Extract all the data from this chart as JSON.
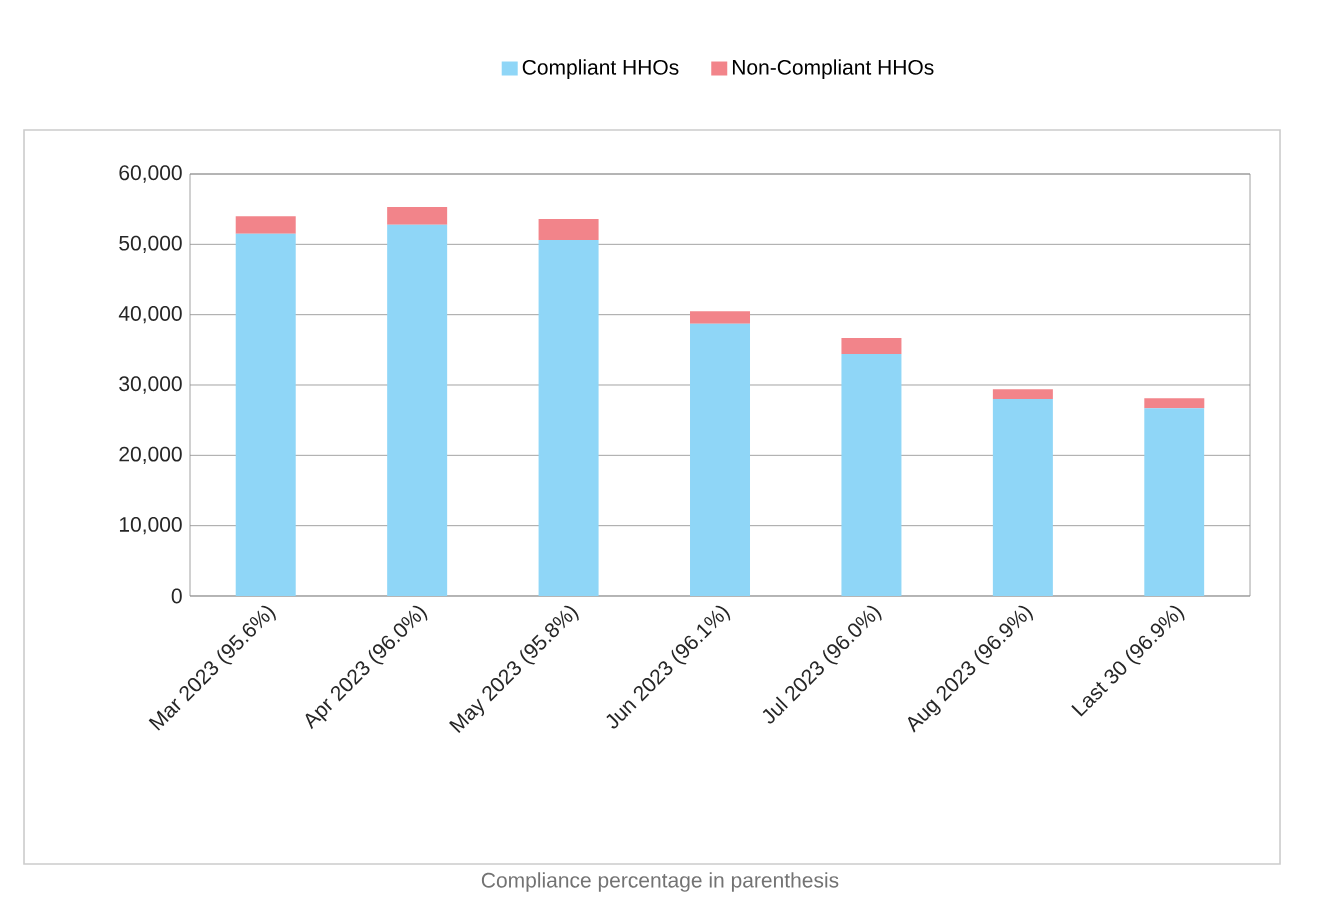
{
  "chart_data": {
    "type": "bar",
    "stacked": true,
    "categories": [
      "Mar 2023 (95.6%)",
      "Apr 2023 (96.0%)",
      "May 2023 (95.8%)",
      "Jun 2023 (96.1%)",
      "Jul 2023 (96.0%)",
      "Aug 2023 (96.9%)",
      "Last 30 (96.9%)"
    ],
    "series": [
      {
        "name": "Compliant HHOs",
        "color": "#8fd6f7",
        "values": [
          51500,
          52800,
          50600,
          38700,
          34400,
          28000,
          26700
        ]
      },
      {
        "name": "Non-Compliant HHOs",
        "color": "#f2848a",
        "values": [
          2500,
          2500,
          3000,
          1800,
          2300,
          1400,
          1400
        ]
      }
    ],
    "ylim": [
      0,
      60000
    ],
    "yticks": [
      {
        "value": 0,
        "label": "0"
      },
      {
        "value": 10000,
        "label": "10,000"
      },
      {
        "value": 20000,
        "label": "20,000"
      },
      {
        "value": 30000,
        "label": "30,000"
      },
      {
        "value": 40000,
        "label": "40,000"
      },
      {
        "value": 50000,
        "label": "50,000"
      },
      {
        "value": 60000,
        "label": "60,000"
      }
    ],
    "grid": "y",
    "legend": "top",
    "annotations": [
      "Compliance percentage in parenthesis"
    ]
  }
}
